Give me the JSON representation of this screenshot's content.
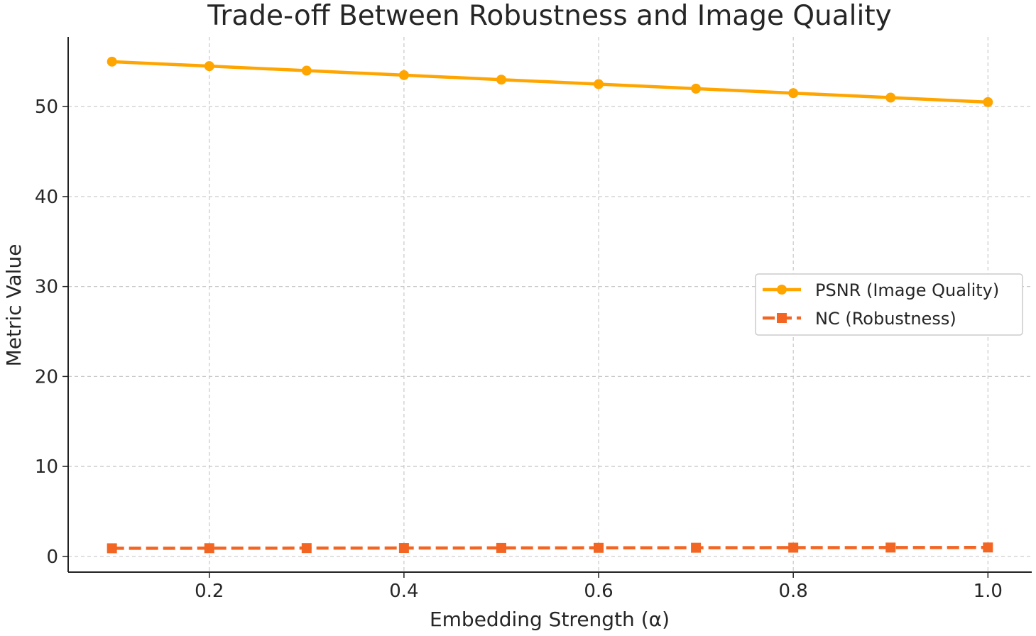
{
  "chart_data": {
    "type": "line",
    "title": "Trade-off Between Robustness and Image Quality",
    "xlabel": "Embedding Strength (α)",
    "ylabel": "Metric Value",
    "x": [
      0.1,
      0.2,
      0.3,
      0.4,
      0.5,
      0.6,
      0.7,
      0.8,
      0.9,
      1.0
    ],
    "xlim": [
      0.055,
      1.045
    ],
    "ylim": [
      -1.75,
      57.75
    ],
    "xticks": [
      "0.2",
      "0.4",
      "0.6",
      "0.8",
      "1.0"
    ],
    "yticks": [
      "0",
      "10",
      "20",
      "30",
      "40",
      "50"
    ],
    "grid": true,
    "legend_position": "center-right",
    "series": [
      {
        "name": "PSNR (Image Quality)",
        "values": [
          55,
          54.5,
          54,
          53.5,
          53,
          52.5,
          52,
          51.5,
          51,
          50.5
        ],
        "color": "#FFA500",
        "marker": "circle",
        "linestyle": "solid"
      },
      {
        "name": "NC (Robustness)",
        "values": [
          0.9,
          0.91,
          0.92,
          0.93,
          0.94,
          0.95,
          0.96,
          0.97,
          0.98,
          0.99
        ],
        "color": "#F26522",
        "marker": "square",
        "linestyle": "dashed"
      }
    ]
  }
}
